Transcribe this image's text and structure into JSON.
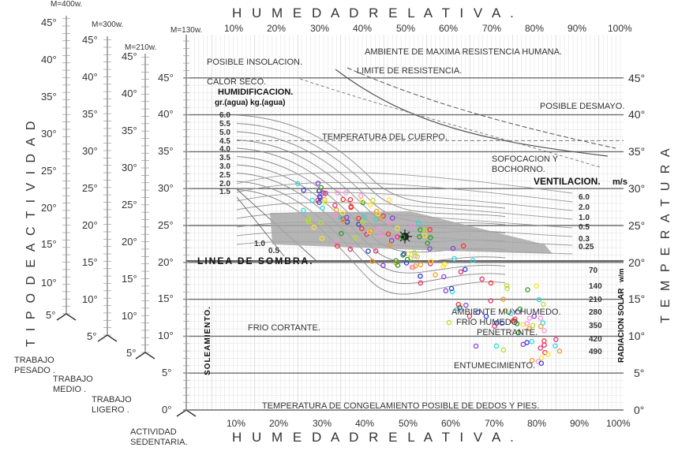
{
  "top_title": "H U M E D A D     R E L A T I V A .",
  "bottom_title": "H U M E D A D     R E L A T I V A .",
  "left_title": "T I P O   D E   A C T I V I D A D",
  "right_title": "T E M P E R A T U R A",
  "humidity_ticks": [
    "10%",
    "20%",
    "30%",
    "40%",
    "50%",
    "60%",
    "70%",
    "80%",
    "90%",
    "100%"
  ],
  "temp_ticks": [
    "0°",
    "5°",
    "10°",
    "15°",
    "20°",
    "25°",
    "30°",
    "35°",
    "40°",
    "45°"
  ],
  "scale_headers": {
    "m400": "M=400w.",
    "m300": "M=300w.",
    "m210": "M=210w.",
    "m130": "M=130w."
  },
  "scale400_ticks": [
    "5°",
    "10°",
    "15°",
    "20°",
    "25°",
    "30°",
    "35°",
    "40°",
    "45°"
  ],
  "scale300_ticks": [
    "5°",
    "10°",
    "15°",
    "20°",
    "25°",
    "30°",
    "35°",
    "40°",
    "45°"
  ],
  "scale210_ticks": [
    "5°",
    "10°",
    "15°",
    "20°",
    "25°",
    "30°",
    "35°",
    "40°",
    "45°"
  ],
  "activity_labels": {
    "pesado_1": "TRABAJO",
    "pesado_2": "PESADO .",
    "medio_1": "TRABAJO",
    "medio_2": "MEDIO .",
    "ligero_1": "TRABAJO",
    "ligero_2": "LIGERO .",
    "sedentaria_1": "ACTIVIDAD",
    "sedentaria_2": "SEDENTARIA."
  },
  "zone_labels": {
    "insolacion": "POSIBLE INSOLACION.",
    "max_resistencia": "AMBIENTE DE MAXIMA RESISTENCIA HUMANA.",
    "calor_seco": "CALOR SECO.",
    "limite": "LIMITE DE RESISTENCIA.",
    "humidificacion": "HUMIDIFICACION.",
    "humidificacion_unit": "gr.(agua) kg.(agua)",
    "desmayo": "POSIBLE DESMAYO.",
    "temp_cuerpo": "TEMPERATURA DEL CUERPO.",
    "sofocacion_1": "SOFOCACION Y",
    "sofocacion_2": "BOCHORNO.",
    "ventilacion": "VENTILACION.",
    "ventilacion_unit": "m/s",
    "linea_sombra": "LINEA DE SOMBRA.",
    "frio_cortante": "FRIO CORTANTE.",
    "ambiente_humedo": "AMBIENTE MUY HUMEDO.",
    "frio_humedo_1": "FRIO HUMEDO",
    "frio_humedo_2": "PENETRANTE.",
    "entumecimiento": "ENTUMECIMIENTO.",
    "congelamiento": "TEMPERATURA DE CONGELAMIENTO POSIBLE DE DEDOS Y PIES.",
    "soleamiento": "SOLEAMIENTO.",
    "radiacion": "RADIACION SOLAR",
    "radiacion_unit": "w/m"
  },
  "humidification_values": [
    "6.0",
    "5.5",
    "5.0",
    "4.5",
    "4.0",
    "3.5",
    "3.0",
    "2.5",
    "2.0",
    "1.5"
  ],
  "humidification_extra": [
    "1.0",
    "0.5"
  ],
  "ventilation_values": [
    "6.0",
    "2.0",
    "1.0",
    "0.5",
    "0.3",
    "0.25"
  ],
  "radiation_values": [
    "70",
    "140",
    "210",
    "280",
    "350",
    "420",
    "490"
  ],
  "colors": {
    "comfort_zone": "#a8a8a8",
    "markers": [
      "#2a9d2a",
      "#2c3fd6",
      "#e0306d",
      "#f09a28",
      "#2fd6d6",
      "#b6e030",
      "#ffe22a",
      "#ff8ee0",
      "#ff3030",
      "#8a3fd6"
    ]
  }
}
